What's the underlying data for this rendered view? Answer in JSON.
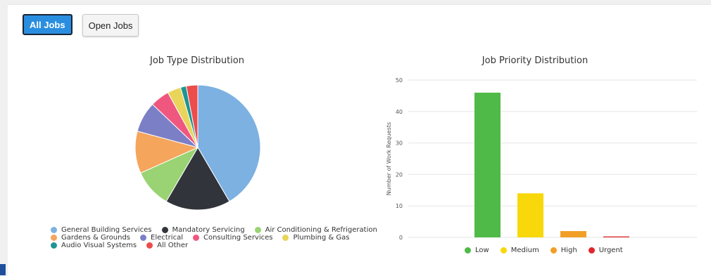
{
  "filters": {
    "all_jobs_label": "All Jobs",
    "open_jobs_label": "Open Jobs"
  },
  "chart_data": [
    {
      "type": "pie",
      "title": "Job Type Distribution",
      "categories": [
        "General Building Services",
        "Mandatory Servicing",
        "Air Conditioning & Refrigeration",
        "Gardens & Grounds",
        "Electrical",
        "Consulting Services",
        "Plumbing & Gas",
        "Audio Visual Systems",
        "All Other"
      ],
      "values": [
        42,
        17,
        10,
        11,
        8,
        5,
        3.5,
        1.5,
        3
      ],
      "colors": [
        "#7cb1e1",
        "#32343b",
        "#9ad373",
        "#f5a55c",
        "#7b7fc6",
        "#f0577f",
        "#e8d55a",
        "#1f9494",
        "#ec4c4c"
      ],
      "legend": "bottom"
    },
    {
      "type": "bar",
      "title": "Job Priority Distribution",
      "categories": [
        "Low",
        "Medium",
        "High",
        "Urgent"
      ],
      "values": [
        46,
        14,
        2,
        0.3
      ],
      "colors": [
        "#4fba48",
        "#f8d80a",
        "#f29f27",
        "#e0262c"
      ],
      "ylabel": "Number of Work Requests",
      "ylim": [
        0,
        50
      ],
      "yticks": [
        0,
        10,
        20,
        30,
        40,
        50
      ],
      "grid": true,
      "legend": "bottom"
    }
  ]
}
